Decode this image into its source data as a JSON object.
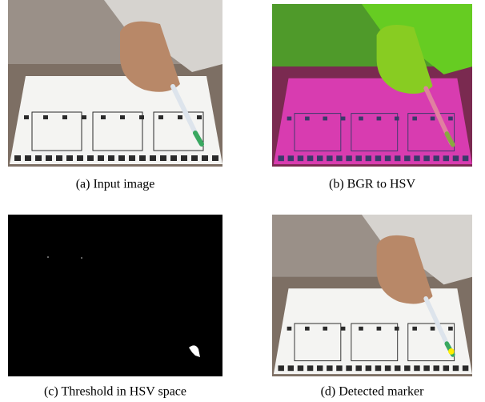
{
  "figure": {
    "panels": [
      {
        "caption": "(a) Input image"
      },
      {
        "caption": "(b) BGR to HSV"
      },
      {
        "caption": "(c) Threshold in HSV space"
      },
      {
        "caption": "(d) Detected marker"
      }
    ]
  }
}
